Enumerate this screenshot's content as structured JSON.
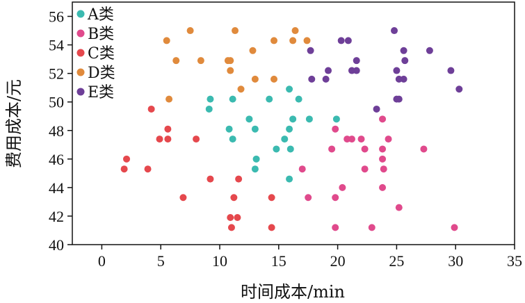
{
  "chart_data": {
    "type": "scatter",
    "title": "",
    "xlabel": "时间成本/min",
    "ylabel": "费用成本/元",
    "xlim": [
      -2.5,
      35
    ],
    "ylim": [
      40,
      57
    ],
    "x_ticks": [
      0,
      5,
      10,
      15,
      20,
      25,
      30,
      35
    ],
    "y_ticks": [
      40,
      42,
      44,
      46,
      48,
      50,
      52,
      54,
      56
    ],
    "grid": false,
    "legend_position": "top-left",
    "series": [
      {
        "name": "A类",
        "color": "#3bbab0",
        "points": [
          [
            9.2,
            50.2
          ],
          [
            9.1,
            49.5
          ],
          [
            11.1,
            50.2
          ],
          [
            14.2,
            50.2
          ],
          [
            15.9,
            50.9
          ],
          [
            16.7,
            50.2
          ],
          [
            12.5,
            48.8
          ],
          [
            16.2,
            48.8
          ],
          [
            17.6,
            48.8
          ],
          [
            19.9,
            48.8
          ],
          [
            10.8,
            48.1
          ],
          [
            13.0,
            48.1
          ],
          [
            15.9,
            48.1
          ],
          [
            11.1,
            47.4
          ],
          [
            15.5,
            47.4
          ],
          [
            14.8,
            46.7
          ],
          [
            16.0,
            46.7
          ],
          [
            13.1,
            46.0
          ],
          [
            13.0,
            45.3
          ],
          [
            15.9,
            44.6
          ]
        ]
      },
      {
        "name": "B类",
        "color": "#e04a8c",
        "points": [
          [
            19.8,
            48.1
          ],
          [
            23.8,
            48.8
          ],
          [
            20.8,
            47.4
          ],
          [
            21.2,
            47.4
          ],
          [
            22.0,
            47.4
          ],
          [
            24.3,
            47.4
          ],
          [
            19.5,
            46.7
          ],
          [
            22.3,
            46.7
          ],
          [
            23.8,
            46.7
          ],
          [
            27.3,
            46.7
          ],
          [
            23.8,
            46.0
          ],
          [
            17.0,
            45.3
          ],
          [
            22.3,
            45.3
          ],
          [
            23.9,
            45.3
          ],
          [
            20.4,
            44.0
          ],
          [
            23.8,
            44.0
          ],
          [
            17.5,
            43.3
          ],
          [
            19.8,
            43.3
          ],
          [
            25.2,
            42.6
          ],
          [
            19.8,
            41.2
          ],
          [
            22.9,
            41.2
          ],
          [
            29.9,
            41.2
          ]
        ]
      },
      {
        "name": "C类",
        "color": "#e5484d",
        "points": [
          [
            4.2,
            49.5
          ],
          [
            5.6,
            48.1
          ],
          [
            4.9,
            47.4
          ],
          [
            5.6,
            47.4
          ],
          [
            8.0,
            47.4
          ],
          [
            2.1,
            46.0
          ],
          [
            1.9,
            45.3
          ],
          [
            3.9,
            45.3
          ],
          [
            9.2,
            44.6
          ],
          [
            11.6,
            44.6
          ],
          [
            6.9,
            43.3
          ],
          [
            11.2,
            43.3
          ],
          [
            14.4,
            43.3
          ],
          [
            10.9,
            41.9
          ],
          [
            11.5,
            41.9
          ],
          [
            11.0,
            41.2
          ],
          [
            14.4,
            41.2
          ]
        ]
      },
      {
        "name": "D类",
        "color": "#e08a3c",
        "points": [
          [
            7.5,
            55.0
          ],
          [
            11.3,
            55.0
          ],
          [
            16.4,
            55.0
          ],
          [
            5.5,
            54.3
          ],
          [
            14.6,
            54.3
          ],
          [
            16.2,
            54.3
          ],
          [
            17.4,
            54.3
          ],
          [
            12.8,
            53.6
          ],
          [
            6.3,
            52.9
          ],
          [
            8.4,
            52.9
          ],
          [
            10.7,
            52.9
          ],
          [
            10.9,
            52.9
          ],
          [
            10.9,
            52.2
          ],
          [
            13.0,
            51.6
          ],
          [
            14.6,
            51.6
          ],
          [
            11.8,
            50.9
          ],
          [
            5.7,
            50.2
          ]
        ]
      },
      {
        "name": "E类",
        "color": "#6e3f98",
        "points": [
          [
            24.8,
            55.0
          ],
          [
            20.3,
            54.3
          ],
          [
            20.9,
            54.3
          ],
          [
            17.7,
            53.6
          ],
          [
            25.6,
            53.6
          ],
          [
            27.8,
            53.6
          ],
          [
            21.6,
            52.9
          ],
          [
            25.7,
            52.9
          ],
          [
            19.2,
            52.2
          ],
          [
            21.2,
            52.2
          ],
          [
            21.6,
            52.2
          ],
          [
            25.0,
            52.2
          ],
          [
            29.6,
            52.2
          ],
          [
            17.8,
            51.6
          ],
          [
            19.0,
            51.6
          ],
          [
            25.2,
            51.6
          ],
          [
            25.6,
            51.6
          ],
          [
            30.3,
            50.9
          ],
          [
            25.0,
            50.2
          ],
          [
            25.2,
            50.2
          ],
          [
            23.3,
            49.5
          ]
        ]
      }
    ]
  }
}
